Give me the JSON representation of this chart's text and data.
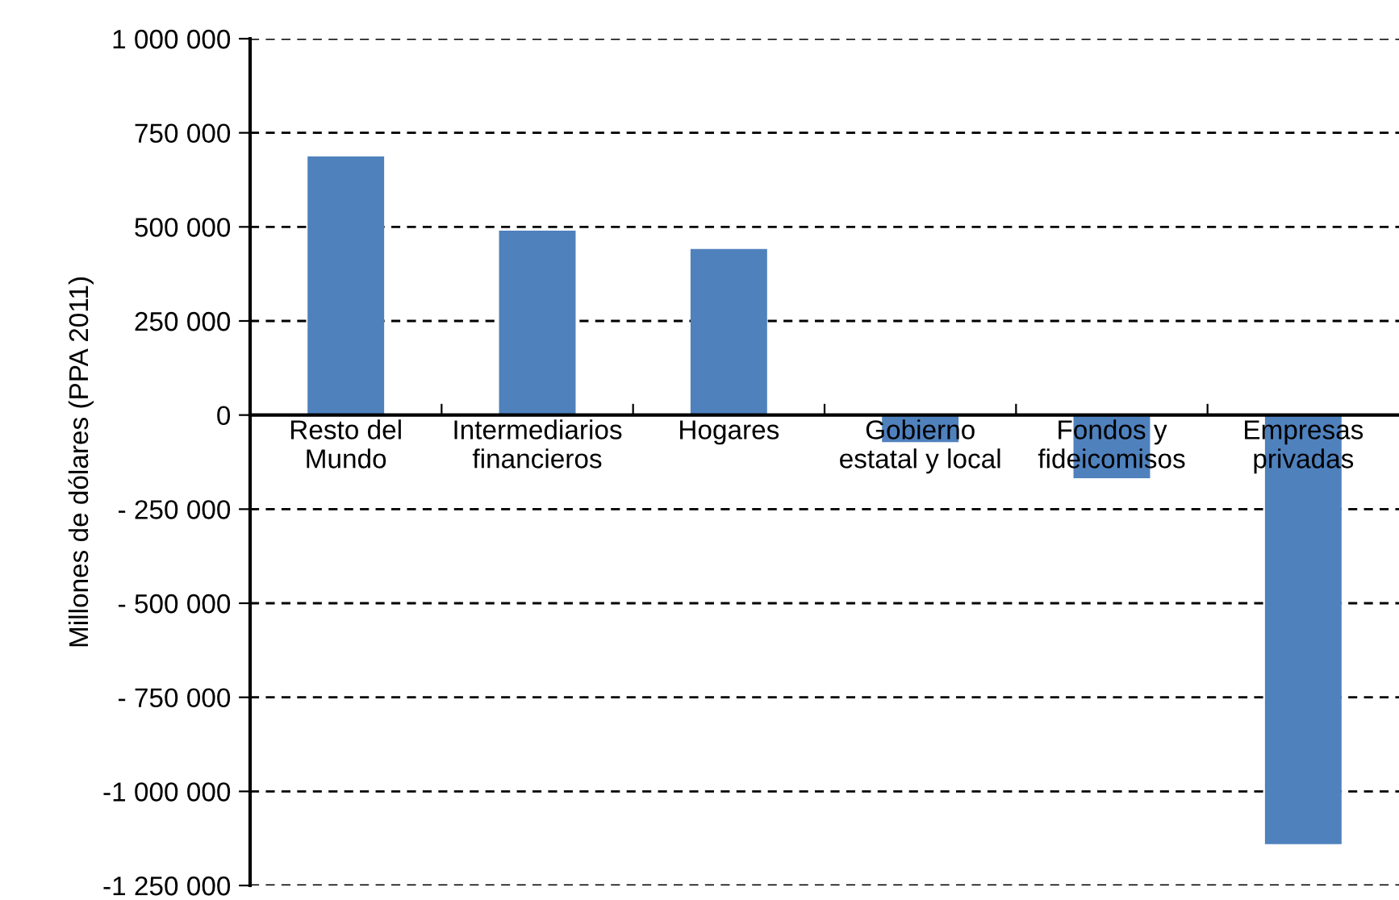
{
  "chart_data": {
    "type": "bar",
    "ylabel": "Millones de dólares (PPA 2011)",
    "categories": [
      "Resto del\nMundo",
      "Intermediarios\nfinancieros",
      "Hogares",
      "Gobierno\nestatal y local",
      "Fondos y\nfideicomisos",
      "Empresas\nprivadas"
    ],
    "values": [
      687000,
      490000,
      441000,
      -72000,
      -168000,
      -1140000
    ],
    "color": "#4f81bd",
    "ylim": [
      -1250000,
      1000000
    ],
    "yticks": [
      {
        "value": -1250000,
        "label": "-1 250 000"
      },
      {
        "value": -1000000,
        "label": "-1 000 000"
      },
      {
        "value": -750000,
        "label": "- 750 000"
      },
      {
        "value": -500000,
        "label": "- 500 000"
      },
      {
        "value": -250000,
        "label": "- 250 000"
      },
      0,
      {
        "value": 250000,
        "label": "250 000"
      },
      {
        "value": 500000,
        "label": "500 000"
      },
      {
        "value": 750000,
        "label": "750 000"
      },
      {
        "value": 1000000,
        "label": "1 000 000"
      }
    ],
    "grid": "y"
  }
}
